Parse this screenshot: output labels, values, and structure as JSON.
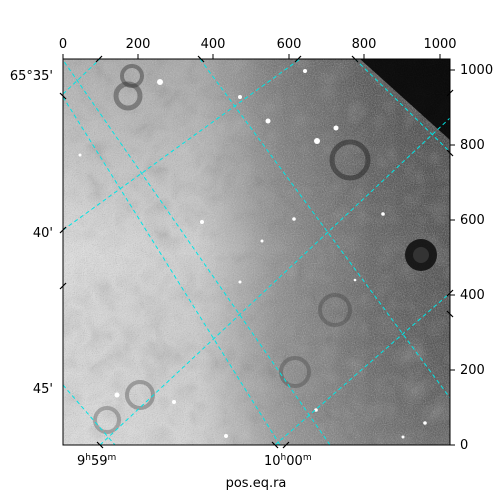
{
  "figure": {
    "xlabel": "pos.eq.ra",
    "pixel_x_ticks": [
      "0",
      "200",
      "400",
      "600",
      "800",
      "1000"
    ],
    "pixel_y_ticks": [
      "0",
      "200",
      "400",
      "600",
      "800",
      "1000"
    ],
    "ra_ticks": [
      {
        "hours": "9",
        "minutes": "59",
        "hours_unit": "h",
        "minutes_unit": "m"
      },
      {
        "hours": "10",
        "minutes": "00",
        "hours_unit": "h",
        "minutes_unit": "m"
      }
    ],
    "dec_ticks": [
      "65°35'",
      "40'",
      "45'"
    ],
    "grid_color": "#00e5e5",
    "frame_color": "#000000",
    "colormap": "greyscale"
  }
}
